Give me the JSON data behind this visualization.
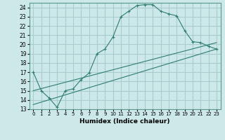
{
  "xlabel": "Humidex (Indice chaleur)",
  "ylabel": "",
  "bg_color": "#cce8e8",
  "grid_color": "#aacccc",
  "line_color": "#2e7d6e",
  "xlim": [
    -0.5,
    23.5
  ],
  "ylim": [
    13,
    24.5
  ],
  "xticks": [
    0,
    1,
    2,
    3,
    4,
    5,
    6,
    7,
    8,
    9,
    10,
    11,
    12,
    13,
    14,
    15,
    16,
    17,
    18,
    19,
    20,
    21,
    22,
    23
  ],
  "yticks": [
    13,
    14,
    15,
    16,
    17,
    18,
    19,
    20,
    21,
    22,
    23,
    24
  ],
  "series1_x": [
    0,
    1,
    2,
    3,
    4,
    5,
    6,
    7,
    8,
    9,
    10,
    11,
    12,
    13,
    14,
    15,
    16,
    17,
    18,
    19,
    20,
    21,
    22,
    23
  ],
  "series1_y": [
    17.0,
    15.0,
    14.2,
    13.2,
    15.0,
    15.2,
    16.2,
    16.9,
    19.0,
    19.5,
    20.8,
    23.0,
    23.6,
    24.2,
    24.3,
    24.3,
    23.6,
    23.3,
    23.1,
    21.5,
    20.3,
    20.2,
    19.8,
    19.5
  ],
  "series2_x": [
    0,
    23
  ],
  "series2_y": [
    15.0,
    20.2
  ],
  "series3_x": [
    0,
    23
  ],
  "series3_y": [
    13.5,
    19.5
  ]
}
